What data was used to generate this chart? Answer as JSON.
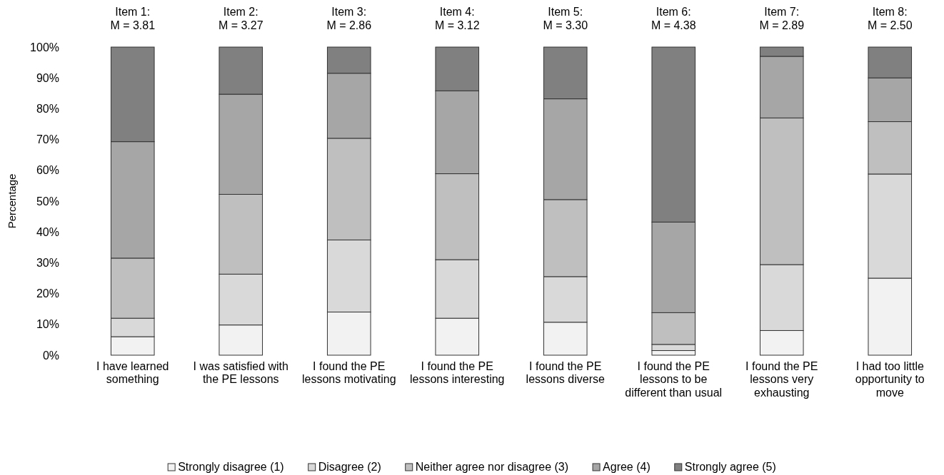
{
  "chart_data": {
    "type": "bar",
    "stacked": true,
    "ylabel": "Percentage",
    "categories": [
      "I have learned something",
      "I was satisfied with the PE lessons",
      "I found the PE lessons motivating",
      "I found the PE lessons interesting",
      "I found the PE lessons diverse",
      "I found the PE lessons to be different than usual",
      "I found the PE lessons very exhausting",
      "I had too little opportunity to move"
    ],
    "series": [
      {
        "name": "Strongly disagree (1)",
        "color": "#f2f2f2",
        "values": [
          6,
          9.8,
          14,
          12,
          10.7,
          1.5,
          8,
          25
        ]
      },
      {
        "name": "Disagree (2)",
        "color": "#d9d9d9",
        "values": [
          6,
          16.5,
          23.4,
          19,
          14.8,
          2,
          21.4,
          33.8
        ]
      },
      {
        "name": "Neither agree nor disagree (3)",
        "color": "#bfbfbf",
        "values": [
          19.5,
          25.9,
          33,
          27.9,
          25,
          10.3,
          47.6,
          17
        ]
      },
      {
        "name": "Agree (4)",
        "color": "#a6a6a6",
        "values": [
          37.8,
          32.5,
          21.1,
          26.9,
          32.7,
          29.4,
          20,
          14.2
        ]
      },
      {
        "name": "Strongly agree (5)",
        "color": "#808080",
        "values": [
          30.7,
          15.3,
          8.5,
          14.2,
          16.8,
          56.8,
          3,
          10
        ]
      }
    ],
    "ylim": [
      0,
      100
    ],
    "yticks": [
      {
        "value": 0,
        "label": "0%"
      },
      {
        "value": 10,
        "label": "10%"
      },
      {
        "value": 20,
        "label": "20%"
      },
      {
        "value": 30,
        "label": "30%"
      },
      {
        "value": 40,
        "label": "40%"
      },
      {
        "value": 50,
        "label": "50%"
      },
      {
        "value": 60,
        "label": "60%"
      },
      {
        "value": 70,
        "label": "70%"
      },
      {
        "value": 80,
        "label": "80%"
      },
      {
        "value": 90,
        "label": "90%"
      },
      {
        "value": 100,
        "label": "100%"
      }
    ],
    "annotations": [
      {
        "text": "Item 1:\nM = 3.81",
        "x": "I have learned something",
        "y": 100
      },
      {
        "text": "Item 2:\nM = 3.27",
        "x": "I was satisfied with the PE lessons",
        "y": 100
      },
      {
        "text": "Item 3:\nM = 2.86",
        "x": "I found the PE lessons motivating",
        "y": 100
      },
      {
        "text": "Item 4:\nM = 3.12",
        "x": "I found the PE lessons interesting",
        "y": 100
      },
      {
        "text": "Item 5:\nM = 3.30",
        "x": "I found the PE lessons diverse",
        "y": 100
      },
      {
        "text": "Item 6:\nM = 4.38",
        "x": "I found the PE lessons to be different than usual",
        "y": 100
      },
      {
        "text": "Item 7:\nM = 2.89",
        "x": "I found the PE lessons very exhausting",
        "y": 100
      },
      {
        "text": "Item 8:\nM = 2.50",
        "x": "I had too little opportunity to move",
        "y": 100
      }
    ],
    "legend": "bottom",
    "grid": false
  }
}
